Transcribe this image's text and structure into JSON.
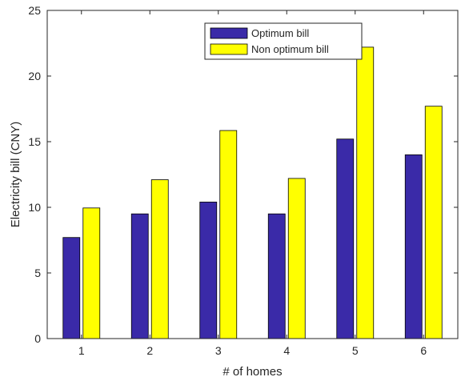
{
  "chart_data": {
    "type": "bar",
    "categories": [
      "1",
      "2",
      "3",
      "4",
      "5",
      "6"
    ],
    "series": [
      {
        "name": "Optimum bill",
        "color": "#3a2aa8",
        "values": [
          7.7,
          9.5,
          10.4,
          9.5,
          15.2,
          14.0
        ]
      },
      {
        "name": "Non optimum bill",
        "color": "#ffff00",
        "values": [
          9.95,
          12.1,
          15.85,
          12.2,
          22.2,
          17.7
        ]
      }
    ],
    "title": "",
    "xlabel": "# of homes",
    "ylabel": "Electricity bill (CNY)",
    "ylim": [
      0,
      25
    ],
    "yticks": [
      "0",
      "5",
      "10",
      "15",
      "20",
      "25"
    ],
    "grid": false,
    "legend_position": "top-center"
  }
}
